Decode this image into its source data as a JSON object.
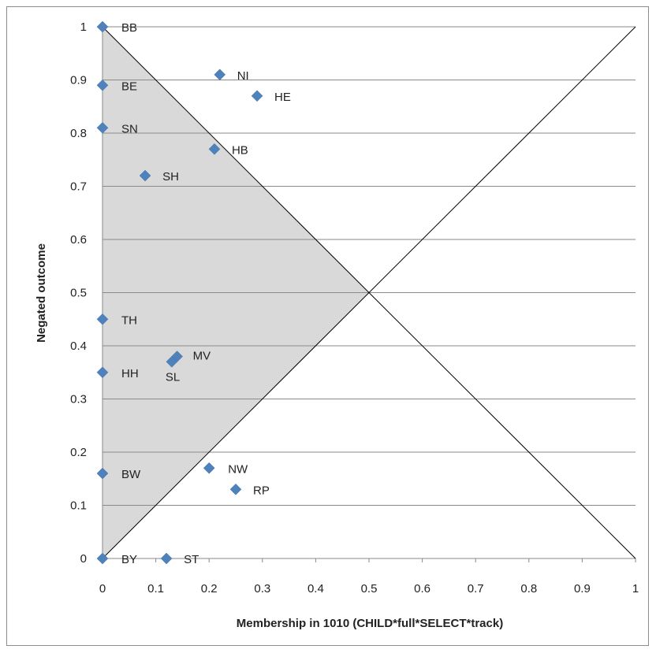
{
  "chart_data": {
    "type": "scatter",
    "xlabel": "Membership in 1010 (CHILD*full*SELECT*track)",
    "ylabel": "Negated outcome",
    "xlim": [
      0,
      1
    ],
    "ylim": [
      0,
      1
    ],
    "x_ticks": [
      "0",
      "0.1",
      "0.2",
      "0.3",
      "0.4",
      "0.5",
      "0.6",
      "0.7",
      "0.8",
      "0.9",
      "1"
    ],
    "y_ticks": [
      "0",
      "0.1",
      "0.2",
      "0.3",
      "0.4",
      "0.5",
      "0.6",
      "0.7",
      "0.8",
      "0.9",
      "1"
    ],
    "grid": "horizontal",
    "marker_color": "#4f81bd",
    "shaded_region_color": "#d9d9d9",
    "reference_lines": [
      "diagonal x=y",
      "anti-diagonal x+y=1"
    ],
    "points": [
      {
        "label": "BB",
        "x": 0,
        "y": 1
      },
      {
        "label": "BE",
        "x": 0,
        "y": 0.89
      },
      {
        "label": "NI",
        "x": 0.22,
        "y": 0.91
      },
      {
        "label": "HE",
        "x": 0.29,
        "y": 0.87
      },
      {
        "label": "SN",
        "x": 0,
        "y": 0.81
      },
      {
        "label": "HB",
        "x": 0.21,
        "y": 0.77
      },
      {
        "label": "SH",
        "x": 0.08,
        "y": 0.72
      },
      {
        "label": "TH",
        "x": 0,
        "y": 0.45
      },
      {
        "label": "MV",
        "x": 0.14,
        "y": 0.38
      },
      {
        "label": "SL",
        "x": 0.13,
        "y": 0.37
      },
      {
        "label": "HH",
        "x": 0,
        "y": 0.35
      },
      {
        "label": "NW",
        "x": 0.2,
        "y": 0.17
      },
      {
        "label": "BW",
        "x": 0,
        "y": 0.16
      },
      {
        "label": "RP",
        "x": 0.25,
        "y": 0.13
      },
      {
        "label": "BY",
        "x": 0,
        "y": 0
      },
      {
        "label": "ST",
        "x": 0.12,
        "y": 0
      }
    ]
  }
}
